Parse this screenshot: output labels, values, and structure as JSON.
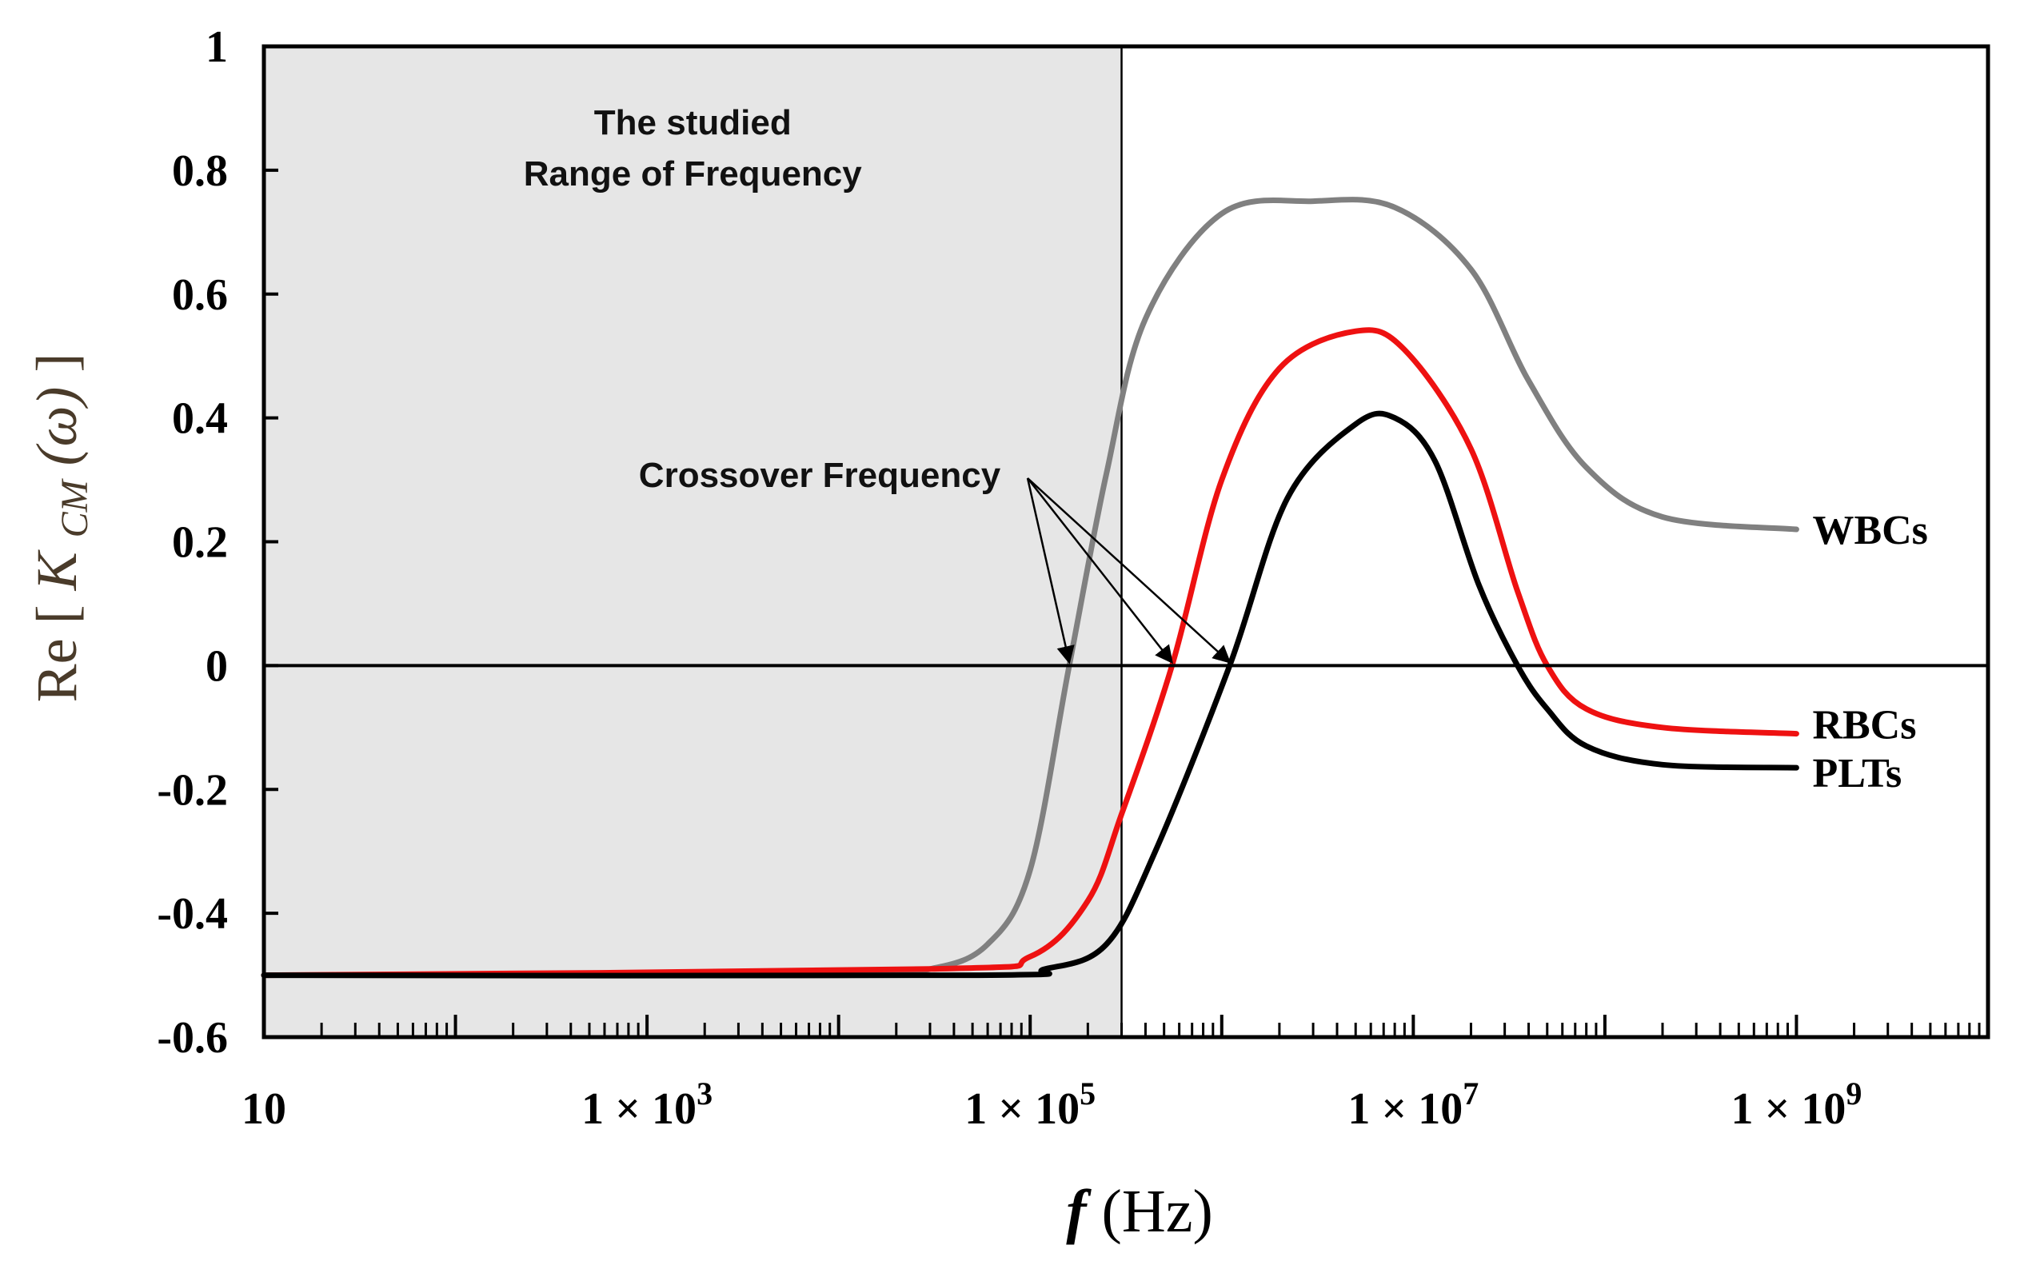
{
  "chart_data": {
    "type": "line",
    "title": "",
    "xlabel": {
      "main": "f",
      "unit": "(Hz)"
    },
    "ylabel": {
      "prefix": "Re [",
      "symbol": "K",
      "subscript": "CM",
      "arg": "(ω)",
      "suffix": "]"
    },
    "xscale": "log",
    "xlim": [
      10,
      10000000000
    ],
    "ylim": [
      -0.6,
      1
    ],
    "xticks": [
      {
        "value": 10,
        "label": "10"
      },
      {
        "value": 1000,
        "label": "1 × 10",
        "exp": "3"
      },
      {
        "value": 100000,
        "label": "1 × 10",
        "exp": "5"
      },
      {
        "value": 10000000,
        "label": "1 × 10",
        "exp": "7"
      },
      {
        "value": 1000000000,
        "label": "1 × 10",
        "exp": "9"
      }
    ],
    "yticks": [
      {
        "value": 1,
        "label": "1"
      },
      {
        "value": 0.8,
        "label": "0.8"
      },
      {
        "value": 0.6,
        "label": "0.6"
      },
      {
        "value": 0.4,
        "label": "0.4"
      },
      {
        "value": 0.2,
        "label": "0.2"
      },
      {
        "value": 0,
        "label": "0"
      },
      {
        "value": -0.2,
        "label": "-0.2"
      },
      {
        "value": -0.4,
        "label": "-0.4"
      },
      {
        "value": -0.6,
        "label": "-0.6"
      }
    ],
    "shaded_region": {
      "x_from": 10,
      "x_to": 300000,
      "label_line1": "The studied",
      "label_line2": "Range of Frequency",
      "color": "#e6e6e6"
    },
    "annotation": {
      "text": "Crossover Frequency",
      "targets_x": [
        160000,
        550000,
        1100000
      ],
      "target_y": 0
    },
    "series": [
      {
        "name": "WBCs",
        "color": "#808080",
        "low": -0.5,
        "high": 0.75,
        "end": 0.22,
        "f1": 200000,
        "f2": 40000000,
        "s1": 1.35,
        "s2": 1.35,
        "points": [
          [
            10,
            -0.5
          ],
          [
            10000,
            -0.5
          ],
          [
            30000,
            -0.49
          ],
          [
            60000,
            -0.45
          ],
          [
            100000,
            -0.33
          ],
          [
            160000,
            0
          ],
          [
            250000,
            0.31
          ],
          [
            400000,
            0.56
          ],
          [
            1000000,
            0.73
          ],
          [
            3000000,
            0.75
          ],
          [
            8000000,
            0.74
          ],
          [
            20000000,
            0.64
          ],
          [
            40000000,
            0.46
          ],
          [
            80000000,
            0.32
          ],
          [
            200000000,
            0.24
          ],
          [
            1000000000,
            0.22
          ]
        ]
      },
      {
        "name": "RBCs",
        "color": "#ee1111",
        "low": -0.5,
        "high": 0.54,
        "end": -0.11,
        "points": [
          [
            10,
            -0.5
          ],
          [
            30000,
            -0.49
          ],
          [
            100000,
            -0.47
          ],
          [
            200000,
            -0.38
          ],
          [
            300000,
            -0.24
          ],
          [
            550000,
            0
          ],
          [
            1000000,
            0.3
          ],
          [
            2000000,
            0.48
          ],
          [
            5000000,
            0.54
          ],
          [
            9000000,
            0.51
          ],
          [
            20000000,
            0.35
          ],
          [
            35000000,
            0.12
          ],
          [
            50000000,
            0
          ],
          [
            80000000,
            -0.07
          ],
          [
            200000000,
            -0.1
          ],
          [
            1000000000,
            -0.11
          ]
        ]
      },
      {
        "name": "PLTs",
        "color": "#000000",
        "low": -0.5,
        "high": 0.4,
        "end": -0.165,
        "points": [
          [
            10,
            -0.5
          ],
          [
            50000,
            -0.5
          ],
          [
            120000,
            -0.49
          ],
          [
            250000,
            -0.45
          ],
          [
            450000,
            -0.3
          ],
          [
            1100000,
            0
          ],
          [
            2200000,
            0.27
          ],
          [
            5000000,
            0.39
          ],
          [
            8000000,
            0.4
          ],
          [
            13000000,
            0.33
          ],
          [
            22000000,
            0.13
          ],
          [
            35000000,
            0
          ],
          [
            50000000,
            -0.07
          ],
          [
            80000000,
            -0.13
          ],
          [
            200000000,
            -0.16
          ],
          [
            1000000000,
            -0.165
          ]
        ]
      }
    ]
  }
}
